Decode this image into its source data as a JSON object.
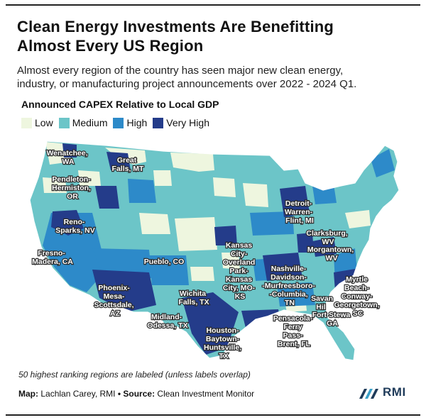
{
  "header": {
    "title_line1": "Clean Energy Investments Are Benefitting",
    "title_line2": "Almost Every US Region",
    "subtitle_line1": "Almost every region of the country has seen major new clean energy,",
    "subtitle_line2": "industry, or manufacturing project announcements over 2022 - 2024 Q1."
  },
  "legend": {
    "title": "Announced CAPEX Relative to Local GDP",
    "items": [
      {
        "label": "Low",
        "color": "#eef6df"
      },
      {
        "label": "Medium",
        "color": "#6cc5c8"
      },
      {
        "label": "High",
        "color": "#2d8ac9"
      },
      {
        "label": "Very High",
        "color": "#243c8a"
      }
    ]
  },
  "map": {
    "base_color": "#6cc5c8",
    "labels": [
      {
        "lines": [
          "Wenatchee,",
          "WA"
        ]
      },
      {
        "lines": [
          "Great",
          "Falls, MT"
        ]
      },
      {
        "lines": [
          "Pendleton-",
          "Hermiston,",
          "OR"
        ]
      },
      {
        "lines": [
          "Reno-",
          "Sparks, NV"
        ]
      },
      {
        "lines": [
          "Fresno-",
          "Madera, CA"
        ]
      },
      {
        "lines": [
          "Pueblo, CO"
        ]
      },
      {
        "lines": [
          "Phoenix-",
          "Mesa-",
          "Scottsdale,",
          "AZ"
        ]
      },
      {
        "lines": [
          "Wichita",
          "Falls, TX"
        ]
      },
      {
        "lines": [
          "Midland-",
          "Odessa, TX"
        ]
      },
      {
        "lines": [
          "Kansas",
          "City-",
          "Overland",
          "Park-",
          "Kansas",
          "City, MO-",
          "KS"
        ]
      },
      {
        "lines": [
          "Houston-",
          "Baytown-",
          "Huntsville,",
          "TX"
        ]
      },
      {
        "lines": [
          "Detroit-",
          "Warren-",
          "Flint, MI"
        ]
      },
      {
        "lines": [
          "Clarksburg,",
          "WV"
        ]
      },
      {
        "lines": [
          "Morgantown,",
          "WV"
        ]
      },
      {
        "lines": [
          "Nashville-",
          "Davidson-",
          "-Murfreesboro-",
          "-Columbia,",
          "TN"
        ]
      },
      {
        "lines": [
          "Myrtle",
          "Beach-",
          "Conway-",
          "Georgetown,",
          "SC"
        ]
      },
      {
        "lines": [
          "Savan",
          "Hil"
        ]
      },
      {
        "lines": [
          "Fort Stewa",
          "GA"
        ]
      },
      {
        "lines": [
          "Pensacola-",
          "Ferry",
          "Pass-",
          "Brent, FL"
        ]
      }
    ]
  },
  "footnote": "50 highest ranking regions are labeled (unless labels overlap)",
  "credit": {
    "map_label": "Map:",
    "map_value": "Lachlan Carey, RMI",
    "separator": "•",
    "source_label": "Source:",
    "source_value": "Clean Investment Monitor"
  },
  "logo": {
    "text": "RMI"
  }
}
